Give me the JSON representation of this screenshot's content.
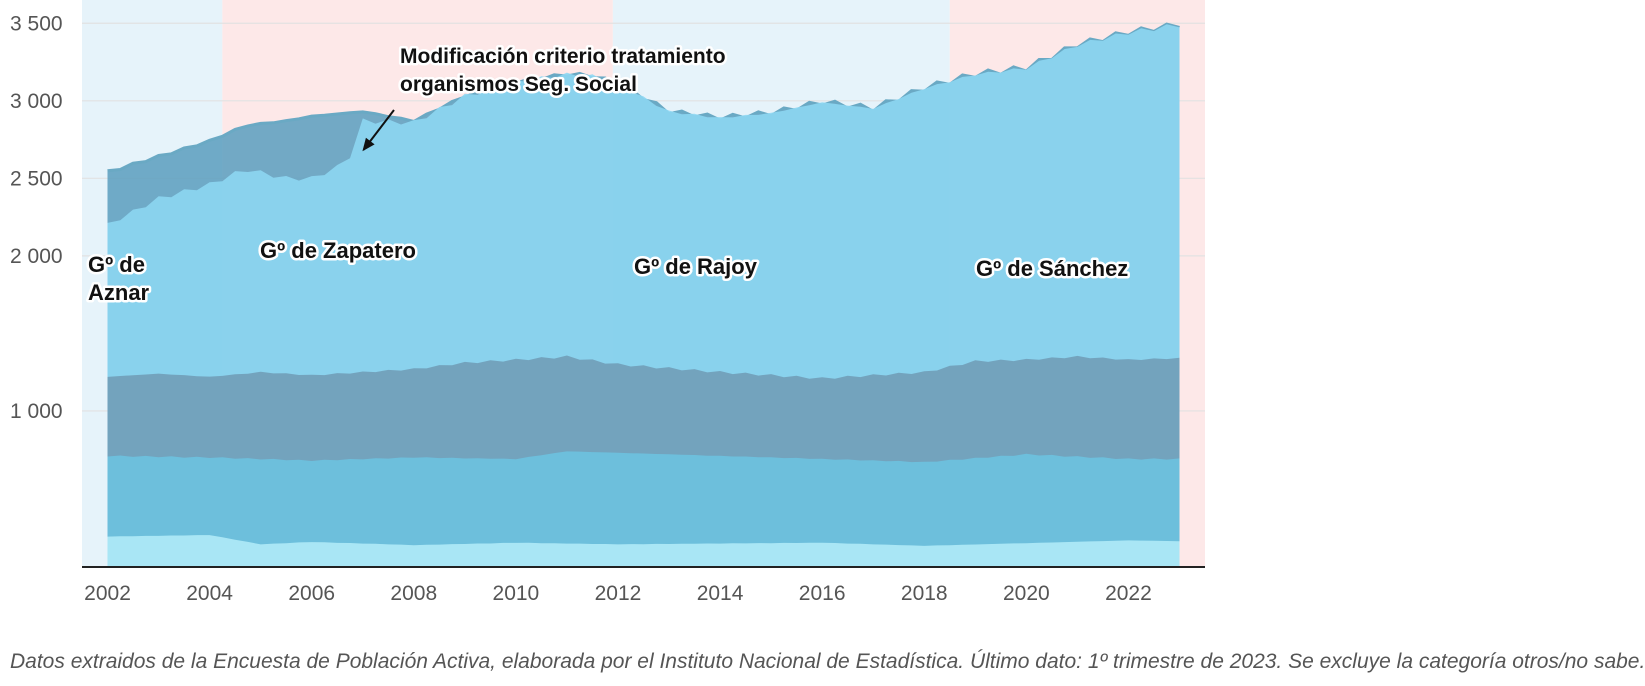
{
  "chart_data": {
    "type": "area",
    "stacked": true,
    "x_range": [
      2001.5,
      2023.5
    ],
    "y_range": [
      0,
      3650
    ],
    "grid": true,
    "x_ticks": [
      "2002",
      "2004",
      "2006",
      "2008",
      "2010",
      "2012",
      "2014",
      "2016",
      "2018",
      "2020",
      "2022"
    ],
    "y_ticks": [
      {
        "value": 1000,
        "label": "1 000"
      },
      {
        "value": 2000,
        "label": "2 000"
      },
      {
        "value": 2500,
        "label": "2 500"
      },
      {
        "value": 3000,
        "label": "3 000"
      },
      {
        "value": 3500,
        "label": "3 500"
      }
    ],
    "governments": [
      {
        "label": [
          "Gº de",
          "Aznar"
        ],
        "start": 2001.5,
        "end": 2004.25,
        "color": "#e6f3fa"
      },
      {
        "label": [
          "Gº de Zapatero"
        ],
        "start": 2004.25,
        "end": 2011.9,
        "color": "#fde8e8"
      },
      {
        "label": [
          "Gº de Rajoy"
        ],
        "start": 2011.9,
        "end": 2018.5,
        "color": "#e6f3fa"
      },
      {
        "label": [
          "Gº de Sánchez"
        ],
        "start": 2018.5,
        "end": 2023.5,
        "color": "#fde8e8"
      }
    ],
    "annotation": {
      "lines": [
        "Modificación criterio tratamiento",
        "organismos Seg. Social"
      ],
      "x": 2006.9,
      "y": 2620
    },
    "series": [
      {
        "color": "#b2ecf8",
        "x": [
          2002,
          2004,
          2005,
          2006,
          2008,
          2010,
          2012,
          2016,
          2018,
          2022,
          2023
        ],
        "y": [
          190,
          200,
          140,
          155,
          135,
          150,
          140,
          150,
          130,
          165,
          160
        ]
      },
      {
        "color": "#6cc3e0",
        "x": [
          2002,
          2004,
          2006,
          2008,
          2010,
          2011,
          2012,
          2016,
          2018,
          2020,
          2022,
          2023
        ],
        "y": [
          710,
          700,
          680,
          700,
          690,
          740,
          730,
          690,
          670,
          720,
          690,
          690
        ]
      },
      {
        "color": "#6f9cb6",
        "x": [
          2002,
          2003,
          2004,
          2005,
          2006,
          2008,
          2009,
          2011,
          2012,
          2014,
          2016,
          2017,
          2018,
          2019,
          2020,
          2021,
          2022,
          2023
        ],
        "y": [
          1220,
          1240,
          1220,
          1250,
          1230,
          1270,
          1310,
          1350,
          1300,
          1250,
          1210,
          1230,
          1250,
          1320,
          1330,
          1350,
          1330,
          1340
        ]
      },
      {
        "color": "#8dd7f3",
        "x": [
          2002,
          2003,
          2004,
          2004.7,
          2005.5,
          2006,
          2006.7,
          2007,
          2008,
          2009,
          2010,
          2011,
          2011.5,
          2012,
          2013,
          2014,
          2015,
          2016,
          2017,
          2018,
          2019,
          2020,
          2021,
          2022,
          2023
        ],
        "y": [
          2200,
          2370,
          2460,
          2560,
          2500,
          2500,
          2600,
          2870,
          2860,
          3030,
          3120,
          3170,
          3160,
          3110,
          2930,
          2890,
          2920,
          2990,
          2950,
          3080,
          3170,
          3210,
          3360,
          3440,
          3490
        ]
      },
      {
        "color": "#5e9fbf",
        "x": [
          2002,
          2003,
          2004,
          2004.7,
          2005.5,
          2006,
          2007,
          2008,
          2009,
          2010,
          2011,
          2011.5,
          2012,
          2013,
          2014,
          2015,
          2016,
          2017,
          2018,
          2019,
          2020,
          2021,
          2022,
          2023
        ],
        "y": [
          2540,
          2640,
          2740,
          2840,
          2870,
          2900,
          2930,
          2870,
          3030,
          3120,
          3170,
          3160,
          3110,
          2930,
          2890,
          2920,
          2990,
          2950,
          3080,
          3170,
          3210,
          3360,
          3440,
          3490
        ]
      }
    ]
  },
  "footnote": "Datos extraidos de la Encuesta de Población Activa, elaborada por el Instituto Nacional de Estadística. Último dato: 1º trimestre de 2023. Se excluye la categoría otros/no sabe."
}
